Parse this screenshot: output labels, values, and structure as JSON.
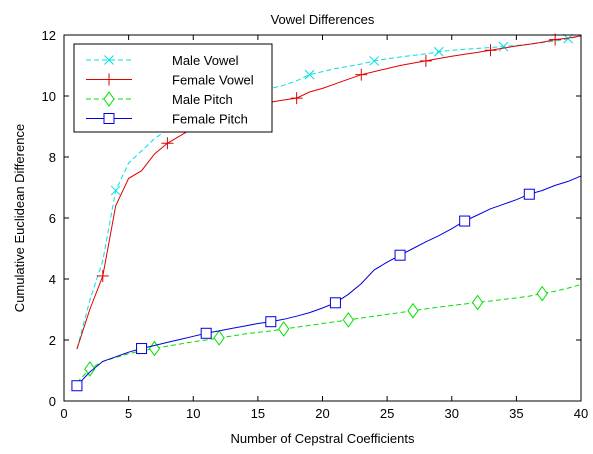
{
  "chart_data": {
    "type": "line",
    "title": "Vowel Differences",
    "xlabel": "Number of Cepstral Coefficients",
    "ylabel": "Cumulative Euclidean Difference",
    "xlim": [
      0,
      40
    ],
    "ylim": [
      0,
      12
    ],
    "xticks": [
      0,
      5,
      10,
      15,
      20,
      25,
      30,
      35,
      40
    ],
    "yticks": [
      0,
      2,
      4,
      6,
      8,
      10,
      12
    ],
    "grid": false,
    "legend_position": "top-left",
    "series": [
      {
        "name": "Male Vowel",
        "color": "#00e0e0",
        "line_style": "dashed",
        "marker": "x",
        "x": [
          1,
          2,
          3,
          4,
          5,
          6,
          7,
          8,
          9,
          10,
          11,
          12,
          13,
          14,
          15,
          16,
          17,
          18,
          19,
          20,
          21,
          22,
          23,
          24,
          25,
          26,
          27,
          28,
          29,
          30,
          31,
          32,
          33,
          34,
          35,
          36,
          37,
          38,
          39,
          40
        ],
        "y": [
          1.7,
          3.3,
          4.6,
          6.9,
          7.8,
          8.2,
          8.6,
          8.9,
          9.2,
          9.45,
          9.65,
          9.8,
          9.95,
          10.05,
          10.15,
          10.25,
          10.35,
          10.5,
          10.7,
          10.8,
          10.9,
          10.97,
          11.05,
          11.15,
          11.22,
          11.28,
          11.33,
          11.38,
          11.45,
          11.5,
          11.53,
          11.56,
          11.59,
          11.62,
          11.66,
          11.7,
          11.75,
          11.8,
          11.88,
          11.97
        ],
        "marker_x": [
          4,
          9,
          14,
          19,
          24,
          29,
          34,
          39
        ]
      },
      {
        "name": "Female Vowel",
        "color": "#e00000",
        "line_style": "solid",
        "marker": "+",
        "x": [
          1,
          2,
          3,
          4,
          5,
          6,
          7,
          8,
          9,
          10,
          11,
          12,
          13,
          14,
          15,
          16,
          17,
          18,
          19,
          20,
          21,
          22,
          23,
          24,
          25,
          26,
          27,
          28,
          29,
          30,
          31,
          32,
          33,
          34,
          35,
          36,
          37,
          38,
          39,
          40
        ],
        "y": [
          1.7,
          3.0,
          4.1,
          6.4,
          7.3,
          7.55,
          8.1,
          8.45,
          8.7,
          8.95,
          9.15,
          9.3,
          9.45,
          9.6,
          9.7,
          9.8,
          9.87,
          9.93,
          10.13,
          10.25,
          10.4,
          10.55,
          10.7,
          10.8,
          10.9,
          11.0,
          11.08,
          11.15,
          11.23,
          11.3,
          11.37,
          11.43,
          11.5,
          11.57,
          11.64,
          11.7,
          11.76,
          11.85,
          11.9,
          11.97
        ],
        "marker_x": [
          3,
          8,
          13,
          18,
          23,
          28,
          33,
          38
        ]
      },
      {
        "name": "Male Pitch",
        "color": "#00e000",
        "line_style": "dashed",
        "marker": "diamond",
        "x": [
          1,
          2,
          3,
          4,
          5,
          6,
          7,
          8,
          9,
          10,
          11,
          12,
          13,
          14,
          15,
          16,
          17,
          18,
          19,
          20,
          21,
          22,
          23,
          24,
          25,
          26,
          27,
          28,
          29,
          30,
          31,
          32,
          33,
          34,
          35,
          36,
          37,
          38,
          39,
          40
        ],
        "y": [
          0.6,
          1.05,
          1.3,
          1.43,
          1.55,
          1.65,
          1.72,
          1.8,
          1.87,
          1.94,
          2.0,
          2.07,
          2.13,
          2.2,
          2.25,
          2.3,
          2.36,
          2.42,
          2.48,
          2.54,
          2.6,
          2.66,
          2.72,
          2.78,
          2.84,
          2.9,
          2.96,
          3.02,
          3.08,
          3.13,
          3.18,
          3.23,
          3.28,
          3.33,
          3.38,
          3.44,
          3.52,
          3.6,
          3.7,
          3.82
        ],
        "marker_x": [
          2,
          7,
          12,
          17,
          22,
          27,
          32,
          37
        ]
      },
      {
        "name": "Female Pitch",
        "color": "#0000e0",
        "line_style": "solid",
        "marker": "square",
        "x": [
          1,
          2,
          3,
          4,
          5,
          6,
          7,
          8,
          9,
          10,
          11,
          12,
          13,
          14,
          15,
          16,
          17,
          18,
          19,
          20,
          21,
          22,
          23,
          24,
          25,
          26,
          27,
          28,
          29,
          30,
          31,
          32,
          33,
          34,
          35,
          36,
          37,
          38,
          39,
          40
        ],
        "y": [
          0.5,
          0.95,
          1.3,
          1.45,
          1.6,
          1.72,
          1.82,
          1.92,
          2.02,
          2.12,
          2.22,
          2.3,
          2.38,
          2.46,
          2.54,
          2.6,
          2.68,
          2.78,
          2.9,
          3.05,
          3.22,
          3.5,
          3.85,
          4.3,
          4.55,
          4.78,
          5.0,
          5.22,
          5.42,
          5.65,
          5.9,
          6.1,
          6.3,
          6.45,
          6.6,
          6.78,
          6.9,
          7.07,
          7.2,
          7.38
        ],
        "marker_x": [
          1,
          6,
          11,
          16,
          21,
          26,
          31,
          36
        ]
      }
    ]
  }
}
